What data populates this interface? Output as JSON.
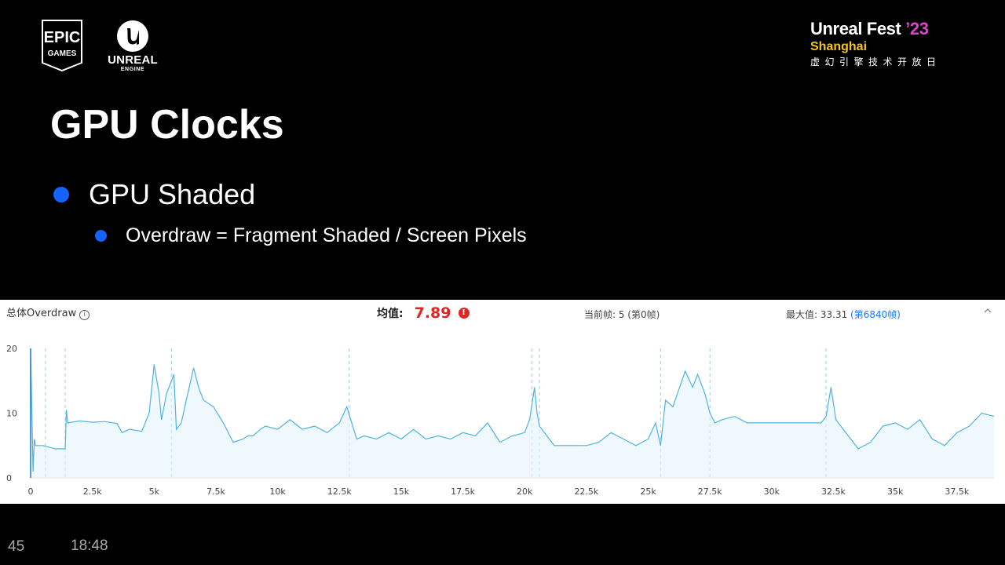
{
  "branding": {
    "epic_line1": "EPIC",
    "epic_line2": "GAMES",
    "unreal_line1": "UNREAL",
    "unreal_line2": "ENGINE",
    "event_name": "Unreal Fest",
    "event_year": "’23",
    "event_city": "Shanghai",
    "event_subtitle": "虚幻引擎技术开放日",
    "year_color": "#d946c7",
    "city_color": "#f5c518"
  },
  "slide": {
    "title": "GPU Clocks",
    "bullet_1": "GPU Shaded",
    "bullet_2": "Overdraw = Fragment Shaded / Screen Pixels",
    "bullet_color": "#1463ff"
  },
  "panel": {
    "label": "总体Overdraw",
    "info_icon": "i",
    "avg_label": "均值:",
    "avg_value": "7.89",
    "warn_icon": "!",
    "current_frame": "当前帧: 5 (第0帧)",
    "max_prefix": "最大值: 33.31 ",
    "max_link": "(第6840帧)",
    "collapse_icon": "chevron-up-icon",
    "alert_color": "#e02424",
    "link_color": "#1677ff"
  },
  "chart_data": {
    "type": "line",
    "series": [
      {
        "color": "#4fb3e0",
        "x": [
          0,
          100,
          150,
          200,
          250,
          500,
          1000,
          1400,
          1450,
          1500,
          2000,
          2500,
          3000,
          3500,
          3700,
          4000,
          4500,
          4800,
          5000,
          5200,
          5300,
          5500,
          5800,
          5900,
          6100,
          6300,
          6600,
          6800,
          7000,
          7400,
          7800,
          8200,
          8600,
          8800,
          9000,
          9300,
          9500,
          10000,
          10500,
          11000,
          11500,
          12000,
          12500,
          12800,
          13200,
          13500,
          14000,
          14500,
          15000,
          15500,
          16000,
          16500,
          17000,
          17500,
          18000,
          18500,
          19000,
          19500,
          20000,
          20200,
          20400,
          20500,
          20600,
          20800,
          21000,
          21200,
          21500,
          22000,
          22500,
          23000,
          23500,
          24000,
          24500,
          25000,
          25300,
          25500,
          25700,
          26000,
          26500,
          26800,
          27000,
          27300,
          27500,
          27700,
          28000,
          28500,
          29000,
          29500,
          30000,
          30500,
          31000,
          31500,
          32000,
          32200,
          32400,
          32600,
          32800,
          33000,
          33500,
          34000,
          34500,
          35000,
          35500,
          36000,
          36500,
          37000,
          37500,
          38000,
          38500,
          39000
        ],
        "y": [
          20,
          1,
          6,
          5,
          5,
          5,
          4.5,
          4.5,
          10.5,
          8.5,
          8.8,
          8.6,
          8.7,
          8.4,
          7,
          7.5,
          7.2,
          10,
          17.5,
          13,
          9,
          13,
          16,
          7.5,
          8.5,
          12,
          17,
          14,
          12,
          11,
          8.5,
          5.5,
          6,
          6.5,
          6.5,
          7.5,
          8,
          7.5,
          9,
          7.5,
          8,
          7,
          8.5,
          11,
          6,
          6.5,
          6,
          7,
          6,
          7.5,
          6,
          6.5,
          6,
          7,
          6.5,
          8.5,
          5.5,
          6.5,
          7,
          9,
          14,
          10,
          8,
          7,
          6,
          5,
          5,
          5,
          5,
          5.5,
          7,
          6,
          5,
          6,
          8.5,
          5,
          12,
          11,
          16.5,
          14,
          16,
          13,
          10,
          8.5,
          9,
          9.5,
          8.5,
          8.5,
          8.5,
          8.5,
          8.5,
          8.5,
          8.5,
          9.5,
          14,
          9,
          8,
          7,
          4.5,
          5.5,
          8,
          8.5,
          7.5,
          9,
          6,
          5,
          7,
          8,
          10,
          9.5
        ]
      }
    ],
    "xlim": [
      0,
      39000
    ],
    "ylim": [
      0,
      20
    ],
    "x_ticks": [
      "0",
      "2.5k",
      "5k",
      "7.5k",
      "10k",
      "12.5k",
      "15k",
      "17.5k",
      "20k",
      "22.5k",
      "25k",
      "27.5k",
      "30k",
      "32.5k",
      "35k",
      "37.5k"
    ],
    "x_tick_values": [
      0,
      2500,
      5000,
      7500,
      10000,
      12500,
      15000,
      17500,
      20000,
      22500,
      25000,
      27500,
      30000,
      32500,
      35000,
      37500
    ],
    "y_ticks": [
      "0",
      "10",
      "20"
    ],
    "y_tick_values": [
      0,
      10,
      20
    ],
    "marker_lines": [
      600,
      1400,
      5700,
      12900,
      20300,
      20600,
      25500,
      27500,
      32200
    ],
    "grid": false
  },
  "footer": {
    "page_number": "45",
    "time": "18:48"
  }
}
